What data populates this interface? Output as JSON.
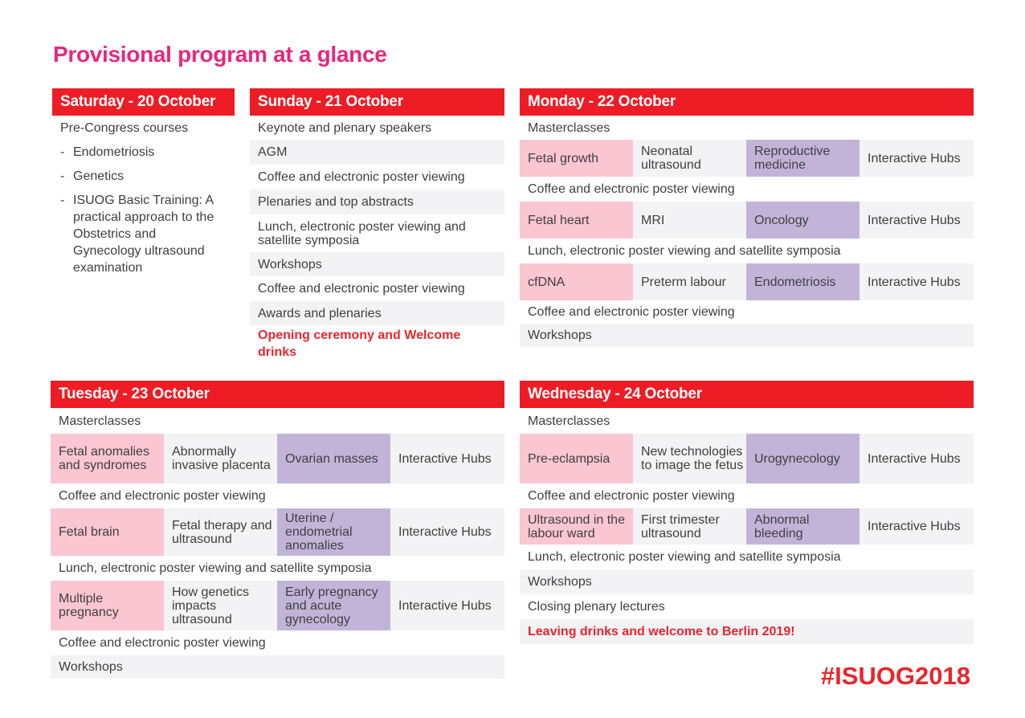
{
  "title": "Provisional program at a glance",
  "hashtag": "#ISUOG2018",
  "colors": {
    "header_red": "#ee1c25",
    "title_pink": "#e6287f",
    "cell_pink": "#f9c6d2",
    "cell_purple": "#c2b4d8",
    "shade": "#f3f3f5"
  },
  "saturday": {
    "header": "Saturday - 20 October",
    "intro": "Pre-Congress courses",
    "items": [
      "Endometriosis",
      "Genetics",
      "ISUOG Basic Training: A practical approach to the Obstetrics and Gynecology ultrasound examination"
    ],
    "dash": "-"
  },
  "sunday": {
    "header": "Sunday - 21 October",
    "rows": [
      "Keynote and plenary speakers",
      "AGM",
      "Coffee and electronic poster viewing",
      "Plenaries and top abstracts",
      "Lunch, electronic poster viewing and satellite symposia",
      "Workshops",
      "Coffee and electronic poster viewing",
      "Awards and plenaries",
      "Opening ceremony and Welcome drinks"
    ]
  },
  "monday": {
    "header": "Monday - 22 October",
    "masterclasses": "Masterclasses",
    "grid1": [
      "Fetal growth",
      "Neonatal ultrasound",
      "Reproductive medicine",
      "Interactive Hubs"
    ],
    "break1": "Coffee and electronic poster viewing",
    "grid2": [
      "Fetal heart",
      "MRI",
      "Oncology",
      "Interactive Hubs"
    ],
    "break2": "Lunch, electronic poster viewing and satellite symposia",
    "grid3": [
      "cfDNA",
      "Preterm labour",
      "Endometriosis",
      "Interactive Hubs"
    ],
    "break3": "Coffee and electronic poster viewing",
    "final": "Workshops"
  },
  "tuesday": {
    "header": "Tuesday - 23 October",
    "masterclasses": "Masterclasses",
    "grid1": [
      "Fetal anomalies and syndromes",
      "Abnormally invasive placenta",
      "Ovarian masses",
      "Interactive Hubs"
    ],
    "break1": "Coffee and electronic poster viewing",
    "grid2": [
      "Fetal brain",
      "Fetal therapy and ultrasound",
      "Uterine / endometrial anomalies",
      "Interactive Hubs"
    ],
    "break2": "Lunch, electronic poster viewing and satellite symposia",
    "grid3": [
      "Multiple pregnancy",
      "How genetics impacts ultrasound",
      "Early pregnancy and acute gynecology",
      "Interactive Hubs"
    ],
    "break3": "Coffee and electronic poster viewing",
    "final": "Workshops"
  },
  "wednesday": {
    "header": "Wednesday - 24 October",
    "masterclasses": "Masterclasses",
    "grid1": [
      "Pre-eclampsia",
      "New technologies to image the fetus",
      "Urogynecology",
      "Interactive Hubs"
    ],
    "break1": "Coffee and electronic poster viewing",
    "grid2": [
      "Ultrasound in the labour ward",
      "First trimester ultrasound",
      "Abnormal bleeding",
      "Interactive Hubs"
    ],
    "break2": "Lunch, electronic poster viewing and satellite symposia",
    "row_workshops": "Workshops",
    "row_closing": "Closing plenary lectures",
    "row_leaving": "Leaving drinks and welcome to Berlin 2019!"
  }
}
